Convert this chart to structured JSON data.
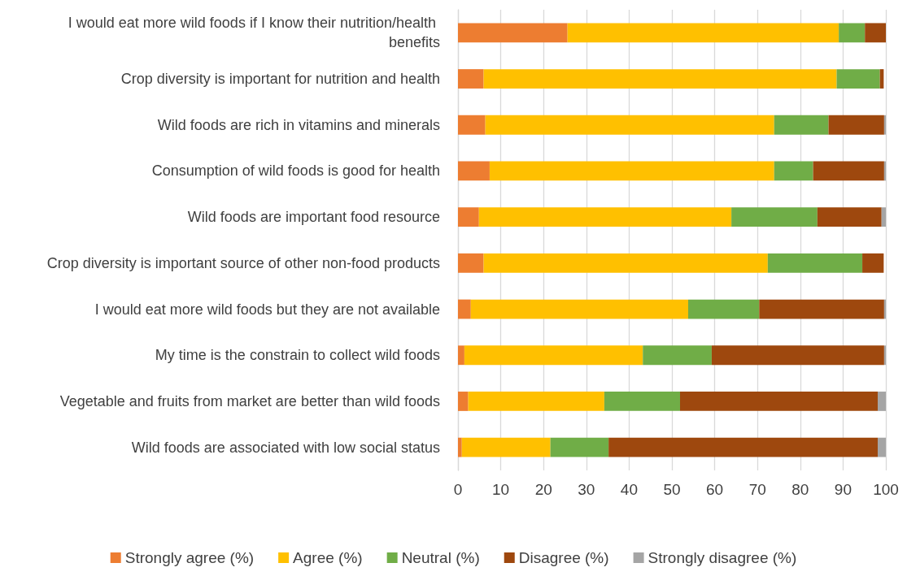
{
  "chart_data": {
    "type": "bar",
    "orientation": "horizontal",
    "stacked": true,
    "categories": [
      "I would eat more wild foods if I know their nutrition/health benefits",
      "Crop diversity is important for nutrition and health",
      "Wild foods are rich in vitamins and minerals",
      "Consumption of wild foods is good for health",
      "Wild foods are important food resource",
      "Crop diversity is important source of other non-food products",
      "I would eat more wild foods but they are not available",
      "My time is the constrain to collect wild foods",
      "Vegetable and fruits from market are better than wild foods",
      "Wild foods are associated with low social status"
    ],
    "series": [
      {
        "name": "Strongly agree (%)",
        "color": "#ed7d31",
        "values": [
          25.6,
          6.0,
          6.4,
          7.4,
          4.9,
          6.0,
          3.0,
          1.5,
          2.4,
          0.9
        ]
      },
      {
        "name": "Agree (%)",
        "color": "#ffc000",
        "values": [
          63.4,
          82.5,
          67.5,
          66.5,
          59.0,
          66.4,
          50.8,
          41.7,
          31.8,
          20.7
        ]
      },
      {
        "name": "Neutral (%)",
        "color": "#70ad47",
        "values": [
          6.1,
          10.1,
          12.7,
          9.1,
          20.1,
          22.1,
          16.6,
          16.1,
          17.7,
          13.6
        ]
      },
      {
        "name": "Disagree (%)",
        "color": "#9e480e",
        "values": [
          4.9,
          0.9,
          13.0,
          16.6,
          15.0,
          5.0,
          29.2,
          40.3,
          46.2,
          62.9
        ]
      },
      {
        "name": "Strongly disagree (%)",
        "color": "#a5a5a5",
        "values": [
          0,
          0,
          0.4,
          0.4,
          1.0,
          0,
          0.4,
          0.4,
          1.9,
          1.9
        ]
      }
    ],
    "xlim": [
      0,
      100
    ],
    "xticks": [
      0,
      10,
      20,
      30,
      40,
      50,
      60,
      70,
      80,
      90,
      100
    ],
    "grid": "x",
    "legend": "bottom"
  }
}
